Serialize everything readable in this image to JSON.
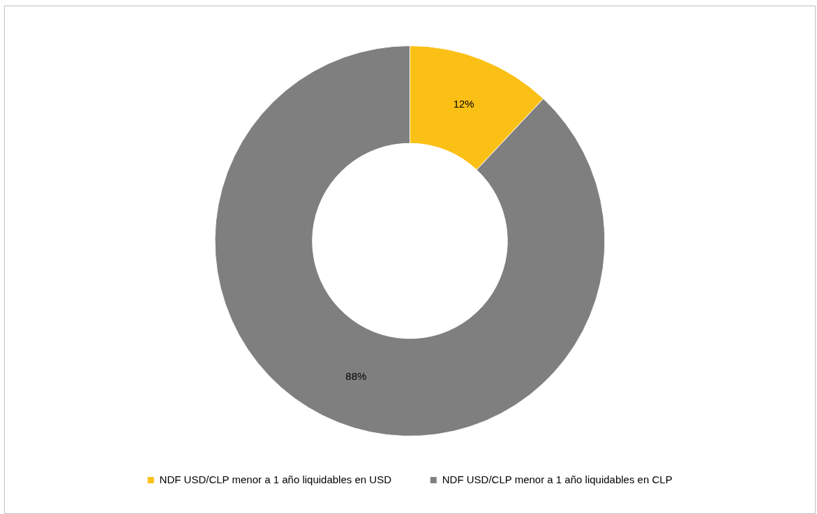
{
  "chart_data": {
    "type": "donut",
    "categories": [
      "NDF USD/CLP menor a 1 año liquidables en USD",
      "NDF USD/CLP menor a 1 año liquidables en CLP"
    ],
    "values": [
      12,
      88
    ],
    "colors": [
      "#fbc015",
      "#7f7f7f"
    ],
    "value_labels": [
      "12%",
      "88%"
    ],
    "legend": "bottom"
  }
}
